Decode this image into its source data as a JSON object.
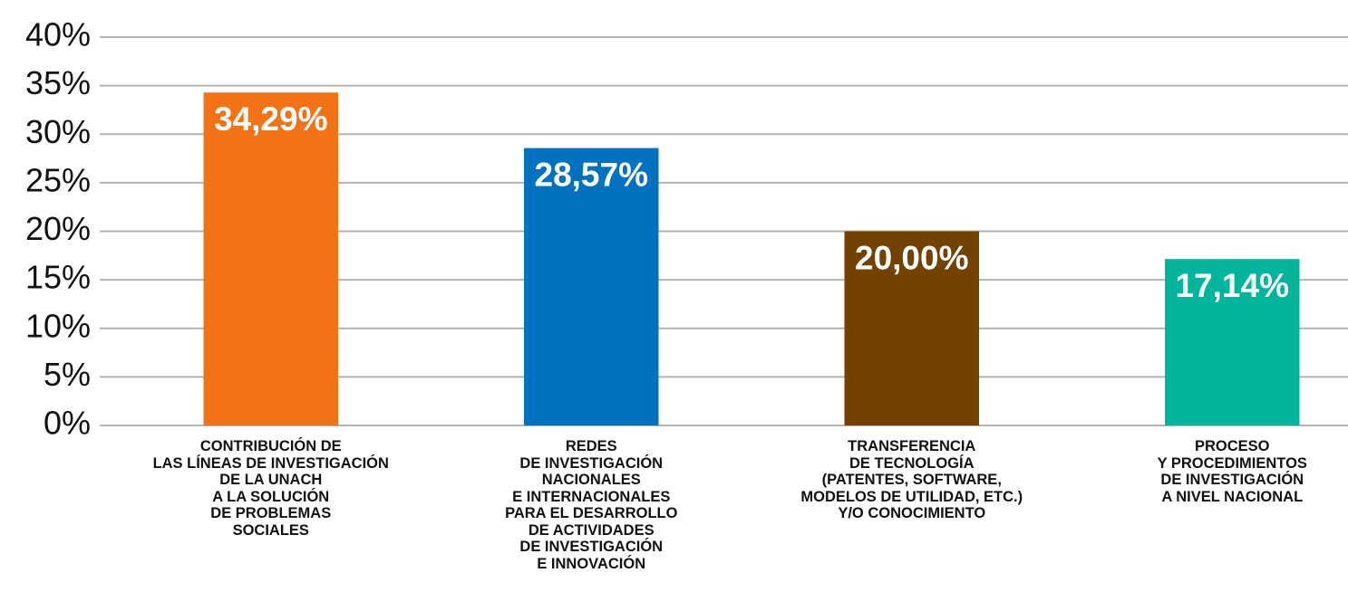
{
  "chart_data": {
    "type": "bar",
    "categories": [
      "CONTRIBUCIÓN DE\nLAS LÍNEAS DE INVESTIGACIÓN\nDE LA UNACH\nA LA SOLUCIÓN\nDE PROBLEMAS\nSOCIALES",
      "REDES\nDE INVESTIGACIÓN\nNACIONALES\nE INTERNACIONALES\nPARA EL DESARROLLO\nDE ACTIVIDADES\nDE INVESTIGACIÓN\nE INNOVACIÓN",
      "TRANSFERENCIA\nDE TECNOLOGÍA\n(PATENTES, SOFTWARE,\nMODELOS DE UTILIDAD, ETC.)\nY/O CONOCIMIENTO",
      "PROCESO\nY PROCEDIMIENTOS\nDE INVESTIGACIÓN\nA NIVEL NACIONAL"
    ],
    "values": [
      34.29,
      28.57,
      20.0,
      17.14
    ],
    "value_labels": [
      "34,29%",
      "28,57%",
      "20,00%",
      "17,14%"
    ],
    "colors": [
      "#f47216",
      "#0072c0",
      "#734100",
      "#00b59c"
    ],
    "ylim": [
      0,
      40
    ],
    "yticks": [
      {
        "value": 0,
        "label": "0%"
      },
      {
        "value": 5,
        "label": "5%"
      },
      {
        "value": 10,
        "label": "10%"
      },
      {
        "value": 15,
        "label": "15%"
      },
      {
        "value": 20,
        "label": "20%"
      },
      {
        "value": 25,
        "label": "25%"
      },
      {
        "value": 30,
        "label": "30%"
      },
      {
        "value": 35,
        "label": "35%"
      },
      {
        "value": 40,
        "label": "40%"
      }
    ],
    "grid": true
  }
}
